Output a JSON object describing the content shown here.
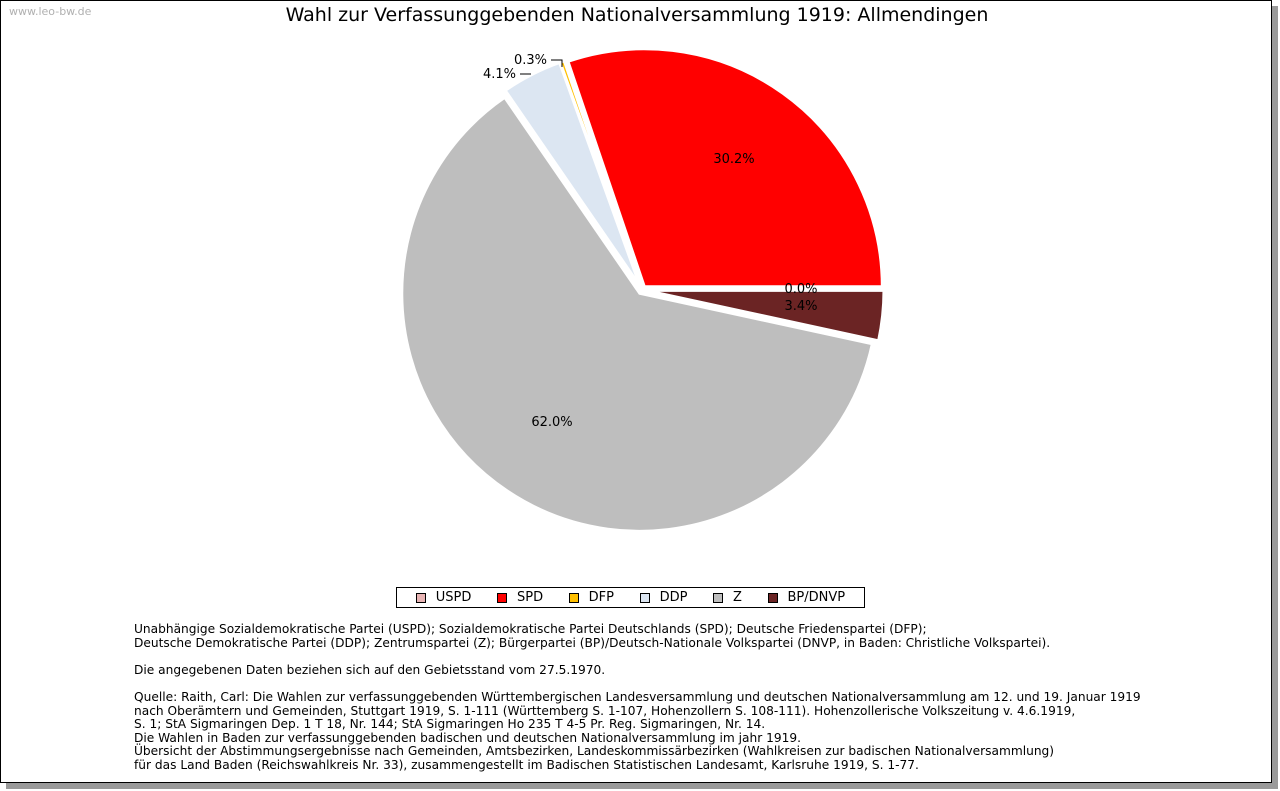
{
  "watermark": "www.leo-bw.de",
  "chart_data": {
    "type": "pie",
    "title": "Wahl zur Verfassunggebenden Nationalversammlung 1919: Allmendingen",
    "slices": [
      {
        "name": "USPD",
        "value": 0.0,
        "label": "0.0%",
        "color": "#e8b4b4"
      },
      {
        "name": "SPD",
        "value": 30.2,
        "label": "30.2%",
        "color": "#ff0000"
      },
      {
        "name": "DFP",
        "value": 0.3,
        "label": "0.3%",
        "color": "#ffc000"
      },
      {
        "name": "DDP",
        "value": 4.1,
        "label": "4.1%",
        "color": "#dce6f2"
      },
      {
        "name": "Z",
        "value": 62.0,
        "label": "62.0%",
        "color": "#bebebe"
      },
      {
        "name": "BP/DNVP",
        "value": 3.4,
        "label": "3.4%",
        "color": "#6b2424"
      }
    ],
    "legend_position": "bottom"
  },
  "notes": {
    "parties_1": "Unabhängige Sozialdemokratische Partei (USPD); Sozialdemokratische Partei Deutschlands (SPD); Deutsche Friedenspartei (DFP);",
    "parties_2": "Deutsche Demokratische Partei (DDP); Zentrumspartei (Z); Bürgerpartei (BP)/Deutsch-Nationale Volkspartei (DNVP, in Baden: Christliche Volkspartei).",
    "gebietsstand": "Die angegebenen Daten beziehen sich auf den Gebietsstand vom 27.5.1970.",
    "source_1": "Quelle: Raith, Carl: Die Wahlen zur verfassunggebenden Württembergischen Landesversammlung und deutschen Nationalversammlung am 12. und 19. Januar 1919",
    "source_2": "nach Oberämtern und Gemeinden, Stuttgart 1919, S. 1-111 (Württemberg S. 1-107, Hohenzollern S. 108-111). Hohenzollerische Volkszeitung v. 4.6.1919,",
    "source_3": "S. 1; StA Sigmaringen Dep. 1 T 18, Nr. 144; StA Sigmaringen Ho 235 T 4-5 Pr. Reg. Sigmaringen, Nr. 14.",
    "source_4": "Die Wahlen in Baden zur verfassunggebenden badischen und deutschen Nationalversammlung im jahr 1919.",
    "source_5": "Übersicht der Abstimmungsergebnisse nach Gemeinden, Amtsbezirken, Landeskommissärbezirken (Wahlkreisen zur badischen Nationalversammlung)",
    "source_6": "für das Land Baden (Reichswahlkreis Nr. 33), zusammengestellt im Badischen Statistischen Landesamt, Karlsruhe 1919, S. 1-77."
  }
}
